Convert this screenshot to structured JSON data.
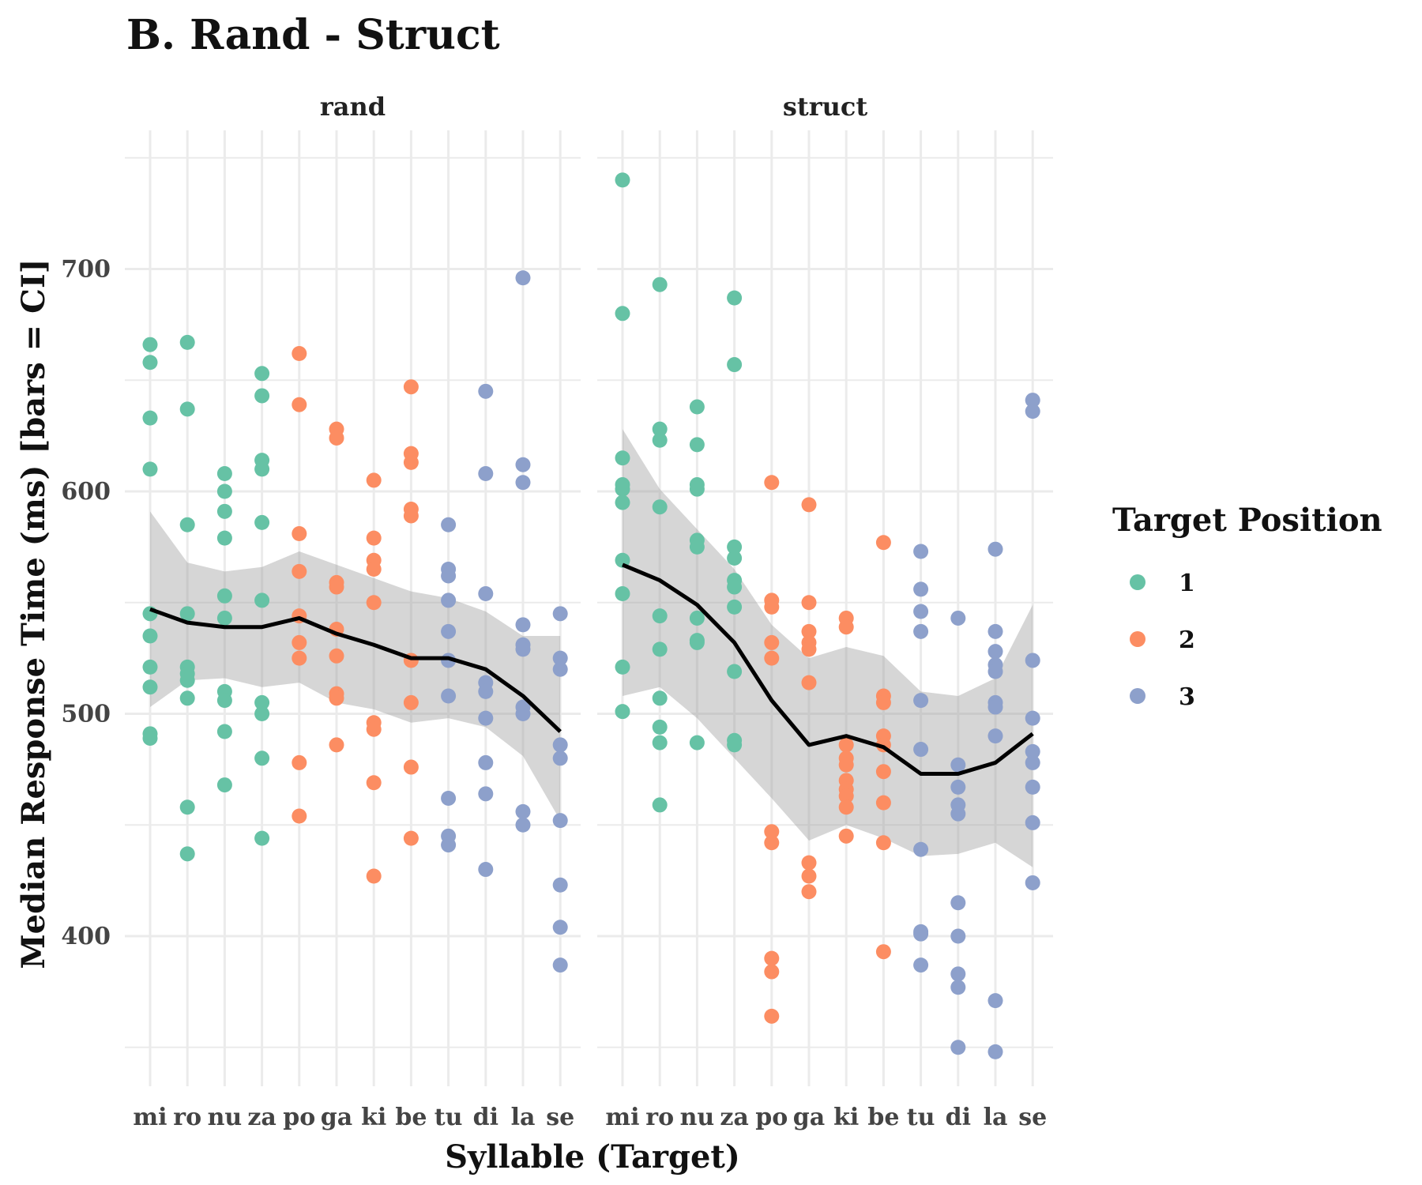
{
  "chart_data": {
    "type": "scatter",
    "title": "B. Rand - Struct",
    "xlabel": "Syllable (Target)",
    "ylabel": "Median Response Time (ms) [bars = CI]",
    "ylim": [
      335,
      760
    ],
    "yticks": [
      400,
      500,
      600,
      700
    ],
    "grid": true,
    "categories": [
      "mi",
      "ro",
      "nu",
      "za",
      "po",
      "ga",
      "ki",
      "be",
      "tu",
      "di",
      "la",
      "se"
    ],
    "category_position": {
      "mi": 1,
      "ro": 1,
      "nu": 1,
      "za": 1,
      "po": 2,
      "ga": 2,
      "ki": 2,
      "be": 2,
      "tu": 3,
      "di": 3,
      "la": 3,
      "se": 3
    },
    "legend": {
      "title": "Target Position",
      "placement": "right",
      "entries": [
        {
          "label": "1",
          "color": "#66c2a5"
        },
        {
          "label": "2",
          "color": "#fc8d62"
        },
        {
          "label": "3",
          "color": "#8da0cb"
        }
      ]
    },
    "panels": [
      {
        "name": "rand",
        "points": {
          "mi": [
            666,
            658,
            633,
            610,
            545,
            535,
            521,
            512,
            491,
            489
          ],
          "ro": [
            667,
            637,
            585,
            545,
            521,
            518,
            515,
            507,
            458,
            437
          ],
          "nu": [
            608,
            600,
            591,
            579,
            553,
            543,
            510,
            506,
            492,
            468
          ],
          "za": [
            653,
            643,
            614,
            610,
            586,
            551,
            505,
            500,
            480,
            444
          ],
          "po": [
            662,
            639,
            581,
            564,
            544,
            532,
            525,
            478,
            454
          ],
          "ga": [
            628,
            624,
            559,
            557,
            538,
            526,
            509,
            507,
            486
          ],
          "ki": [
            605,
            579,
            569,
            565,
            550,
            496,
            493,
            469,
            427
          ],
          "be": [
            647,
            617,
            613,
            592,
            589,
            524,
            505,
            476,
            444
          ],
          "tu": [
            585,
            565,
            562,
            551,
            537,
            524,
            508,
            462,
            445,
            441
          ],
          "di": [
            645,
            608,
            554,
            514,
            510,
            498,
            478,
            464,
            430
          ],
          "la": [
            696,
            612,
            604,
            540,
            531,
            529,
            503,
            500,
            456,
            450
          ],
          "se": [
            545,
            525,
            520,
            486,
            480,
            452,
            423,
            404,
            387
          ]
        },
        "smooth": {
          "mean": [
            547,
            541,
            539,
            539,
            543,
            536,
            531,
            525,
            525,
            520,
            508,
            492
          ],
          "lower": [
            503,
            515,
            516,
            512,
            514,
            505,
            502,
            496,
            498,
            494,
            481,
            452
          ],
          "upper": [
            591,
            568,
            564,
            566,
            573,
            567,
            561,
            555,
            552,
            546,
            535,
            535
          ]
        }
      },
      {
        "name": "struct",
        "points": {
          "mi": [
            740,
            680,
            615,
            603,
            601,
            595,
            569,
            554,
            521,
            501
          ],
          "ro": [
            693,
            628,
            623,
            593,
            544,
            529,
            507,
            494,
            487,
            459
          ],
          "nu": [
            638,
            621,
            603,
            601,
            578,
            575,
            543,
            533,
            532,
            487
          ],
          "za": [
            687,
            657,
            575,
            570,
            560,
            557,
            548,
            519,
            488,
            486
          ],
          "po": [
            604,
            551,
            548,
            532,
            525,
            447,
            442,
            390,
            384,
            364
          ],
          "ga": [
            594,
            550,
            537,
            532,
            529,
            514,
            433,
            427,
            420
          ],
          "ki": [
            543,
            539,
            486,
            480,
            477,
            470,
            466,
            463,
            458,
            445
          ],
          "be": [
            577,
            508,
            505,
            490,
            486,
            474,
            460,
            442,
            393
          ],
          "tu": [
            573,
            556,
            546,
            537,
            506,
            484,
            439,
            402,
            401,
            387
          ],
          "di": [
            543,
            477,
            467,
            459,
            455,
            415,
            400,
            383,
            377,
            350
          ],
          "la": [
            574,
            537,
            528,
            522,
            519,
            505,
            503,
            490,
            371,
            348
          ],
          "se": [
            641,
            636,
            524,
            498,
            483,
            478,
            467,
            451,
            424
          ]
        },
        "smooth": {
          "mean": [
            567,
            560,
            549,
            532,
            506,
            486,
            490,
            485,
            473,
            473,
            478,
            491
          ],
          "lower": [
            508,
            512,
            498,
            480,
            462,
            443,
            450,
            444,
            436,
            437,
            442,
            431
          ],
          "upper": [
            628,
            601,
            583,
            565,
            540,
            525,
            530,
            526,
            510,
            508,
            516,
            549
          ]
        }
      }
    ]
  }
}
